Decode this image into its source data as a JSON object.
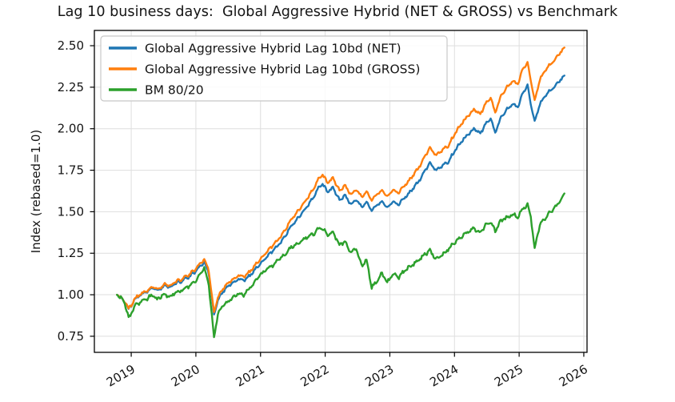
{
  "title": "Lag 10 business days:  Global Aggressive Hybrid (NET & GROSS) vs Benchmark",
  "colors": {
    "net": "#1f77b4",
    "gross": "#ff7f0e",
    "bm": "#2ca02c",
    "grid": "#dedede",
    "spine": "#000000",
    "legend_border": "#c8c8c8",
    "text": "#151515"
  },
  "chart_data": {
    "type": "line",
    "title": "Lag 10 business days:  Global Aggressive Hybrid (NET & GROSS) vs Benchmark",
    "xlabel": "",
    "ylabel": "Index (rebased=1.0)",
    "grid": true,
    "legend_position": "upper left",
    "xlim": [
      2018.43,
      2026.05
    ],
    "ylim": [
      0.653,
      2.592
    ],
    "x_ticks": [
      2019,
      2020,
      2021,
      2022,
      2023,
      2024,
      2025,
      2026
    ],
    "x_tick_labels": [
      "2019",
      "2020",
      "2021",
      "2022",
      "2023",
      "2024",
      "2025",
      "2026"
    ],
    "y_ticks": [
      0.75,
      1.0,
      1.25,
      1.5,
      1.75,
      2.0,
      2.25,
      2.5
    ],
    "y_tick_labels": [
      "0.75",
      "1.00",
      "1.25",
      "1.50",
      "1.75",
      "2.00",
      "2.25",
      "2.50"
    ],
    "x": [
      2018.78,
      2018.84,
      2018.9,
      2018.96,
      2019.0,
      2019.06,
      2019.12,
      2019.2,
      2019.28,
      2019.34,
      2019.4,
      2019.46,
      2019.52,
      2019.6,
      2019.66,
      2019.74,
      2019.82,
      2019.9,
      2019.98,
      2020.06,
      2020.13,
      2020.2,
      2020.28,
      2020.34,
      2020.42,
      2020.5,
      2020.58,
      2020.66,
      2020.74,
      2020.82,
      2020.9,
      2020.98,
      2021.06,
      2021.14,
      2021.22,
      2021.3,
      2021.38,
      2021.46,
      2021.54,
      2021.62,
      2021.7,
      2021.8,
      2021.88,
      2021.96,
      2022.04,
      2022.12,
      2022.22,
      2022.3,
      2022.4,
      2022.48,
      2022.56,
      2022.64,
      2022.72,
      2022.8,
      2022.88,
      2022.96,
      2023.04,
      2023.14,
      2023.24,
      2023.34,
      2023.44,
      2023.54,
      2023.62,
      2023.72,
      2023.8,
      2023.9,
      2024.0,
      2024.1,
      2024.2,
      2024.3,
      2024.4,
      2024.48,
      2024.56,
      2024.63,
      2024.72,
      2024.8,
      2024.9,
      2024.98,
      2025.06,
      2025.13,
      2025.18,
      2025.24,
      2025.32,
      2025.4,
      2025.48,
      2025.56,
      2025.64,
      2025.7
    ],
    "series": [
      {
        "name": "Global Aggressive Hybrid Lag 10bd (NET)",
        "color": "#1f77b4",
        "values": [
          1.0,
          0.985,
          0.96,
          0.915,
          0.935,
          0.975,
          0.995,
          1.01,
          1.03,
          1.045,
          1.02,
          1.04,
          1.055,
          1.04,
          1.06,
          1.075,
          1.09,
          1.11,
          1.135,
          1.17,
          1.2,
          1.13,
          0.875,
          0.97,
          1.02,
          1.05,
          1.075,
          1.095,
          1.085,
          1.11,
          1.145,
          1.18,
          1.215,
          1.245,
          1.275,
          1.31,
          1.355,
          1.405,
          1.44,
          1.48,
          1.52,
          1.575,
          1.635,
          1.665,
          1.62,
          1.645,
          1.57,
          1.6,
          1.545,
          1.575,
          1.53,
          1.555,
          1.505,
          1.545,
          1.56,
          1.525,
          1.56,
          1.545,
          1.59,
          1.63,
          1.68,
          1.745,
          1.79,
          1.75,
          1.775,
          1.8,
          1.865,
          1.92,
          1.96,
          2.0,
          1.97,
          2.03,
          2.06,
          1.975,
          2.07,
          2.11,
          2.15,
          2.13,
          2.22,
          2.265,
          2.15,
          2.04,
          2.15,
          2.195,
          2.23,
          2.26,
          2.295,
          2.32
        ]
      },
      {
        "name": "Global Aggressive Hybrid Lag 10bd (GROSS)",
        "color": "#ff7f0e",
        "values": [
          1.0,
          0.986,
          0.961,
          0.917,
          0.937,
          0.978,
          0.999,
          1.014,
          1.035,
          1.051,
          1.027,
          1.047,
          1.063,
          1.049,
          1.07,
          1.086,
          1.102,
          1.123,
          1.149,
          1.186,
          1.217,
          1.147,
          0.889,
          0.986,
          1.038,
          1.069,
          1.095,
          1.117,
          1.107,
          1.134,
          1.171,
          1.207,
          1.244,
          1.276,
          1.308,
          1.345,
          1.392,
          1.444,
          1.482,
          1.524,
          1.567,
          1.625,
          1.688,
          1.721,
          1.675,
          1.703,
          1.627,
          1.659,
          1.604,
          1.636,
          1.591,
          1.618,
          1.567,
          1.61,
          1.627,
          1.592,
          1.63,
          1.616,
          1.664,
          1.708,
          1.762,
          1.832,
          1.881,
          1.841,
          1.869,
          1.897,
          1.967,
          2.027,
          2.072,
          2.116,
          2.086,
          2.152,
          2.185,
          2.096,
          2.199,
          2.243,
          2.288,
          2.269,
          2.366,
          2.4,
          2.294,
          2.165,
          2.298,
          2.348,
          2.387,
          2.421,
          2.461,
          2.489
        ]
      },
      {
        "name": "BM 80/20",
        "color": "#2ca02c",
        "values": [
          1.0,
          0.98,
          0.945,
          0.86,
          0.885,
          0.93,
          0.95,
          0.965,
          0.985,
          1.0,
          0.97,
          0.99,
          1.005,
          0.985,
          1.005,
          1.02,
          1.035,
          1.055,
          1.08,
          1.12,
          1.16,
          1.06,
          0.74,
          0.88,
          0.935,
          0.96,
          0.985,
          1.01,
          1.0,
          1.03,
          1.07,
          1.11,
          1.14,
          1.165,
          1.19,
          1.215,
          1.245,
          1.28,
          1.3,
          1.32,
          1.34,
          1.36,
          1.39,
          1.4,
          1.355,
          1.38,
          1.3,
          1.32,
          1.255,
          1.28,
          1.175,
          1.21,
          1.045,
          1.08,
          1.13,
          1.07,
          1.125,
          1.105,
          1.15,
          1.175,
          1.205,
          1.245,
          1.265,
          1.215,
          1.235,
          1.275,
          1.315,
          1.35,
          1.375,
          1.4,
          1.375,
          1.42,
          1.435,
          1.385,
          1.445,
          1.465,
          1.485,
          1.47,
          1.52,
          1.54,
          1.47,
          1.28,
          1.42,
          1.46,
          1.495,
          1.525,
          1.57,
          1.61
        ]
      }
    ]
  }
}
